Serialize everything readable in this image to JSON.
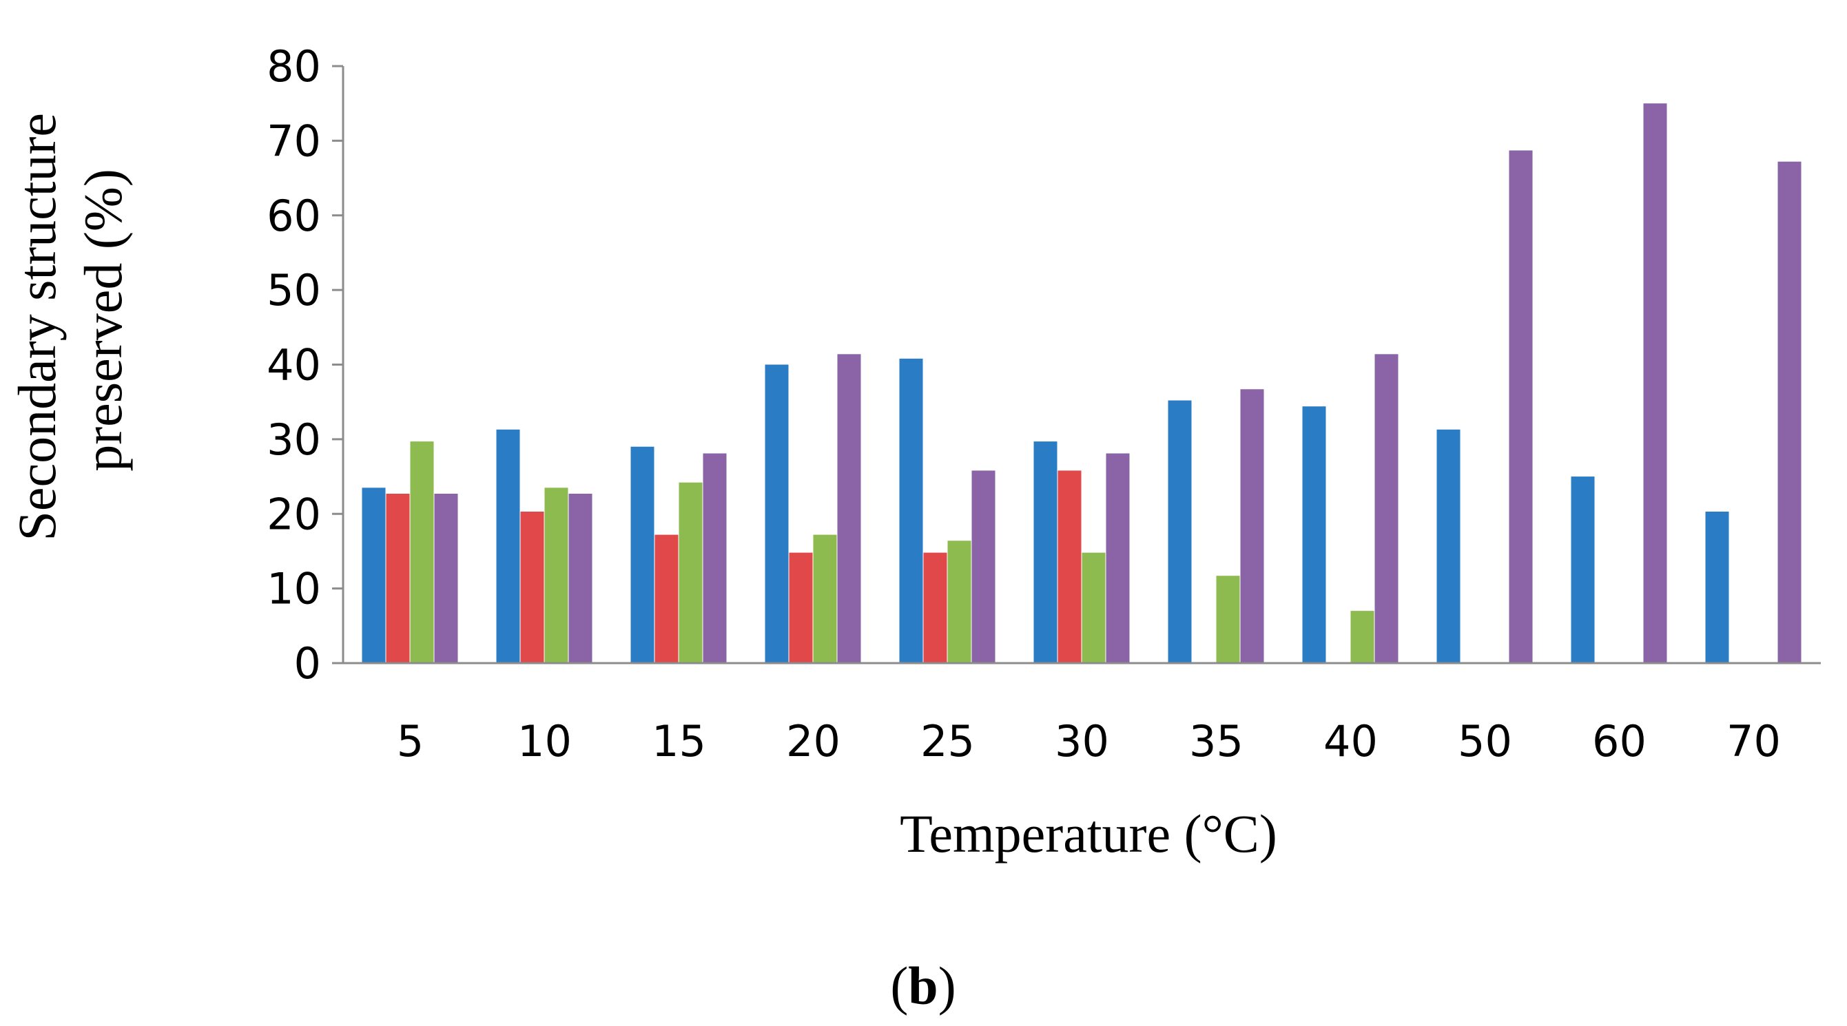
{
  "chart_data": {
    "type": "bar",
    "title": "",
    "xlabel": "Temperature (°C)",
    "ylabel_line1": "Secondary structure",
    "ylabel_line2": "preserved (%)",
    "ylim": [
      0,
      80
    ],
    "yticks": [
      "0",
      "10",
      "20",
      "30",
      "40",
      "50",
      "60",
      "70",
      "80"
    ],
    "grid": false,
    "legend": "none",
    "categories": [
      "5",
      "10",
      "15",
      "20",
      "25",
      "30",
      "35",
      "40",
      "50",
      "60",
      "70"
    ],
    "series": [
      {
        "name": "series-blue",
        "color": "#2a7dc4",
        "values": [
          23.5,
          31.3,
          29.0,
          40.0,
          40.8,
          29.7,
          35.2,
          34.4,
          31.3,
          25.0,
          20.3
        ]
      },
      {
        "name": "series-red",
        "color": "#e0484a",
        "values": [
          22.7,
          20.3,
          17.2,
          14.8,
          14.8,
          25.8,
          0,
          0,
          0,
          0,
          0
        ]
      },
      {
        "name": "series-green",
        "color": "#8dbb4f",
        "values": [
          29.7,
          23.5,
          24.2,
          17.2,
          16.4,
          14.8,
          11.7,
          7.0,
          0,
          0,
          0
        ]
      },
      {
        "name": "series-purple",
        "color": "#8a64a6",
        "values": [
          22.7,
          22.7,
          28.1,
          41.4,
          25.8,
          28.1,
          36.7,
          41.4,
          68.7,
          75.0,
          67.2
        ]
      }
    ]
  },
  "panel_label": {
    "open": "(",
    "letter": "b",
    "close": ")"
  }
}
